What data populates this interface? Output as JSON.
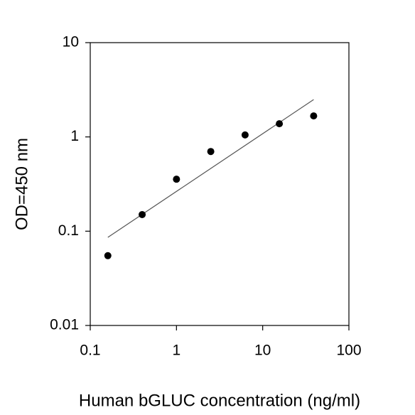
{
  "chart_data": {
    "type": "scatter",
    "x_label": "Human bGLUC concentration (ng/ml)",
    "y_label": "OD=450 nm",
    "x_scale": "log",
    "y_scale": "log",
    "x": [
      0.16,
      0.4,
      1,
      2.5,
      6.25,
      15.6,
      39
    ],
    "values": [
      0.055,
      0.15,
      0.356,
      0.7,
      1.05,
      1.38,
      1.67
    ],
    "color": "#000000",
    "trendline": {
      "x": [
        0.16,
        39
      ],
      "values": [
        0.086,
        2.49
      ],
      "color": "#555555"
    },
    "xlim": [
      0.1,
      100
    ],
    "xticks": [
      0.1,
      1,
      10,
      100
    ],
    "ylim": [
      0.01,
      10
    ],
    "yticks": [
      0.01,
      0.1,
      1,
      10
    ]
  }
}
